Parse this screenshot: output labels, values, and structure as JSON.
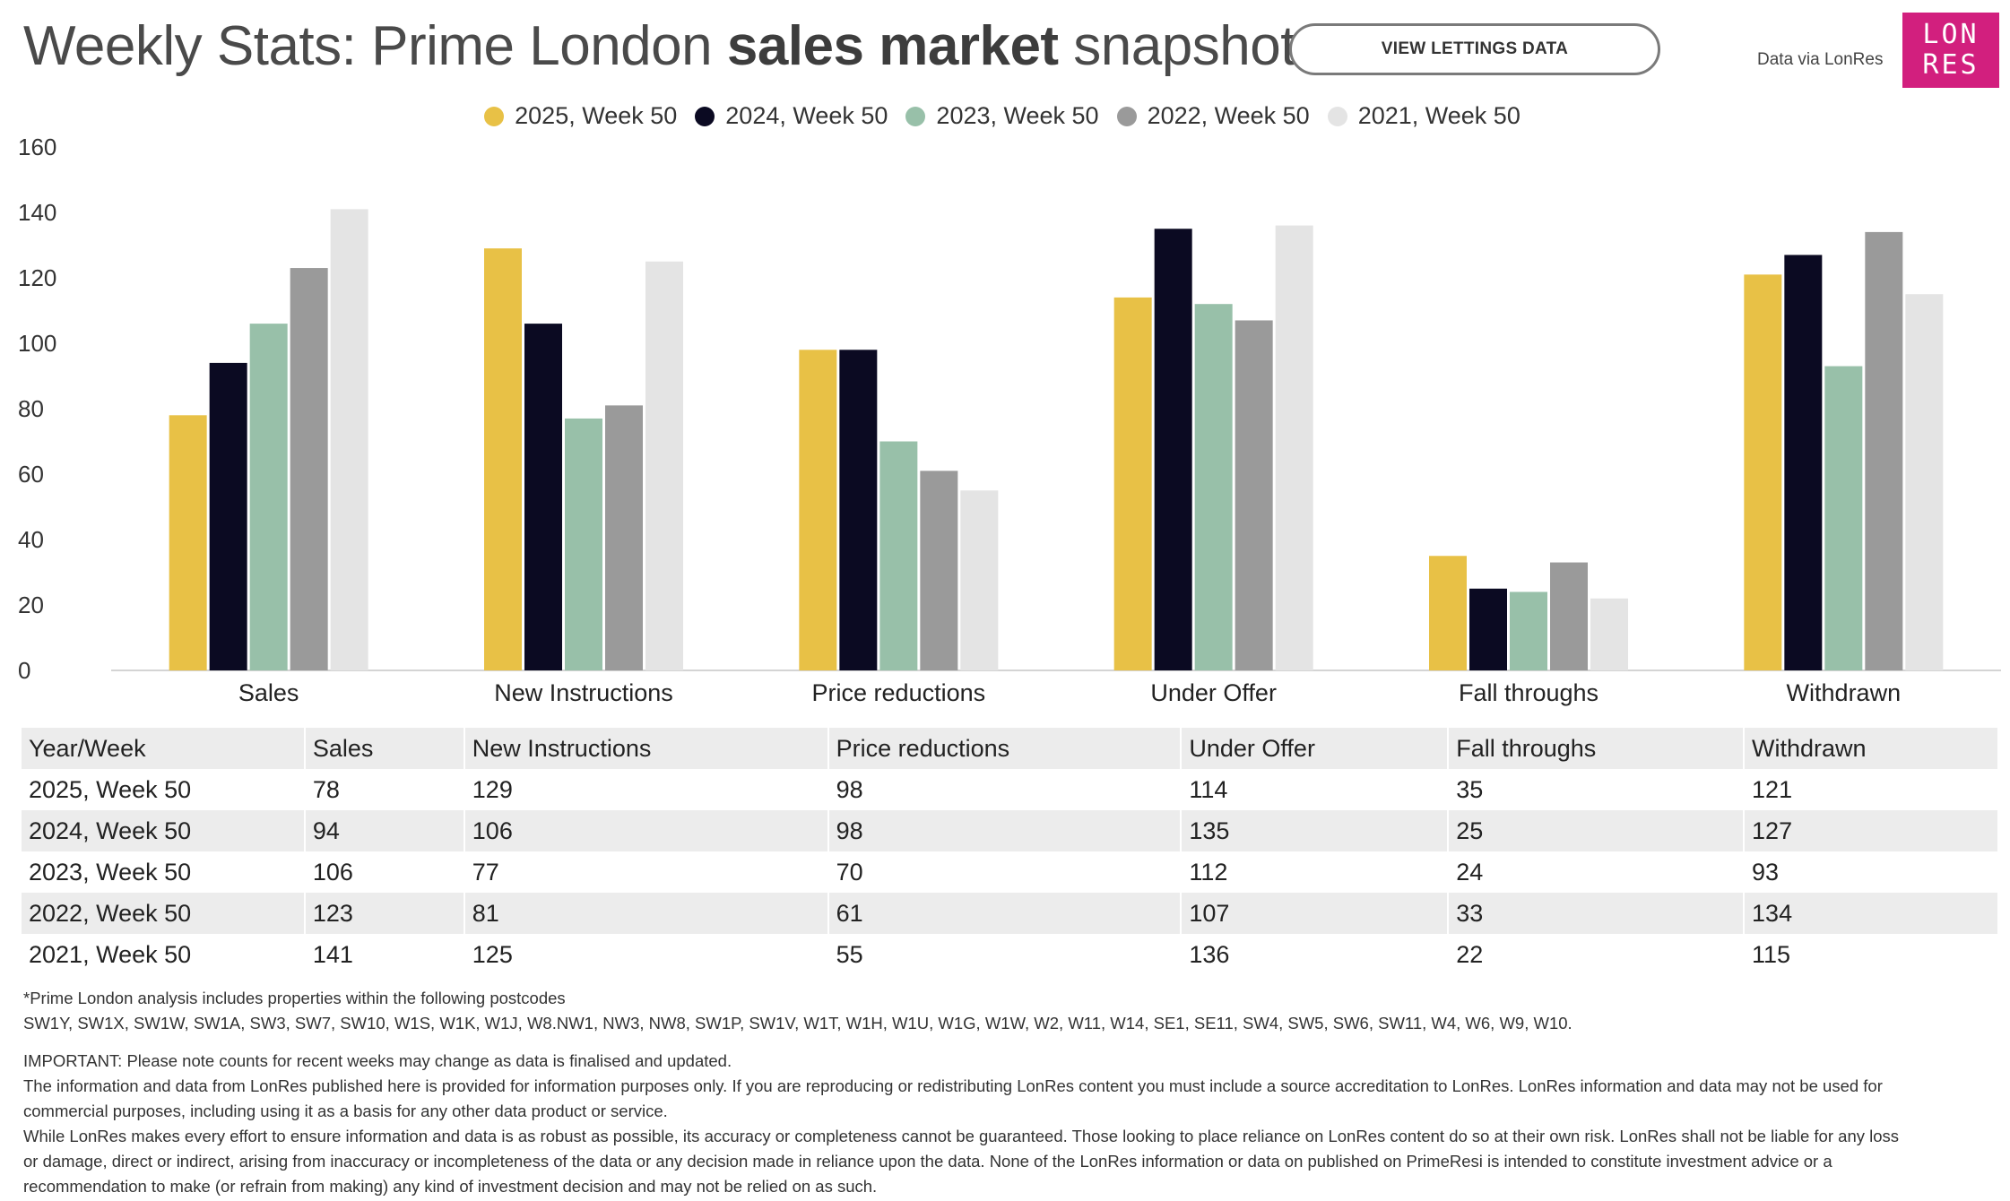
{
  "header": {
    "title_prefix": "Weekly Stats: Prime London ",
    "title_bold": "sales market",
    "title_suffix": " snapshot",
    "view_lettings_label": "VIEW LETTINGS DATA",
    "data_via": "Data via LonRes",
    "logo_line1": "LON",
    "logo_line2": "RES",
    "logo_color": "#d21f7e"
  },
  "chart_data": {
    "type": "bar",
    "title": "",
    "xlabel": "",
    "ylabel": "",
    "ylim": [
      0,
      160
    ],
    "yticks": [
      0,
      20,
      40,
      60,
      80,
      100,
      120,
      140,
      160
    ],
    "grid": false,
    "legend_position": "top-center",
    "categories": [
      "Sales",
      "New Instructions",
      "Price reductions",
      "Under Offer",
      "Fall throughs",
      "Withdrawn"
    ],
    "series": [
      {
        "name": "2025, Week 50",
        "color": "#e8c146",
        "values": [
          78,
          129,
          98,
          114,
          35,
          121
        ]
      },
      {
        "name": "2024, Week 50",
        "color": "#0b0a22",
        "values": [
          94,
          106,
          98,
          135,
          25,
          127
        ]
      },
      {
        "name": "2023, Week 50",
        "color": "#98c0a9",
        "values": [
          106,
          77,
          70,
          112,
          24,
          93
        ]
      },
      {
        "name": "2022, Week 50",
        "color": "#9a9a9a",
        "values": [
          123,
          81,
          61,
          107,
          33,
          134
        ]
      },
      {
        "name": "2021, Week 50",
        "color": "#e4e4e4",
        "values": [
          141,
          125,
          55,
          136,
          22,
          115
        ]
      }
    ]
  },
  "table": {
    "headers": [
      "Year/Week",
      "Sales",
      "New Instructions",
      "Price reductions",
      "Under Offer",
      "Fall throughs",
      "Withdrawn"
    ],
    "rows": [
      [
        "2025, Week 50",
        "78",
        "129",
        "98",
        "114",
        "35",
        "121"
      ],
      [
        "2024, Week 50",
        "94",
        "106",
        "98",
        "135",
        "25",
        "127"
      ],
      [
        "2023, Week 50",
        "106",
        "77",
        "70",
        "112",
        "24",
        "93"
      ],
      [
        "2022, Week 50",
        "123",
        "81",
        "61",
        "107",
        "33",
        "134"
      ],
      [
        "2021, Week 50",
        "141",
        "125",
        "55",
        "136",
        "22",
        "115"
      ]
    ]
  },
  "footnotes": {
    "postcode_intro": "*Prime London analysis includes properties within the following postcodes",
    "postcodes": "SW1Y, SW1X, SW1W, SW1A, SW3, SW7, SW10, W1S, W1K, W1J, W8.NW1, NW3, NW8, SW1P, SW1V, W1T, W1H, W1U, W1G, W1W, W2, W11, W14, SE1, SE11, SW4, SW5, SW6, SW11, W4, W6, W9, W10.",
    "important": "IMPORTANT: Please note counts for recent weeks may change as data is finalised and updated.",
    "info_line1": "The information and data from LonRes published here is provided for information purposes only. If you are reproducing or redistributing LonRes content you must include a source accreditation to LonRes. LonRes information and data may not be used for",
    "info_line2": "commercial purposes, including using it as a basis for any other data product or service.",
    "disclaimer_line1": "While LonRes makes every effort to ensure information and data is as robust as possible, its accuracy or completeness cannot be guaranteed. Those looking to place reliance on LonRes content do so at their own risk. LonRes shall not be liable for any loss",
    "disclaimer_line2": "or damage, direct or indirect, arising from inaccuracy or incompleteness of the data or any decision made in reliance upon the data. None of the LonRes information or data on published on PrimeResi is intended to constitute investment advice or a",
    "disclaimer_line3": "recommendation to make (or refrain from making) any kind of investment decision and may not be relied on as such."
  }
}
